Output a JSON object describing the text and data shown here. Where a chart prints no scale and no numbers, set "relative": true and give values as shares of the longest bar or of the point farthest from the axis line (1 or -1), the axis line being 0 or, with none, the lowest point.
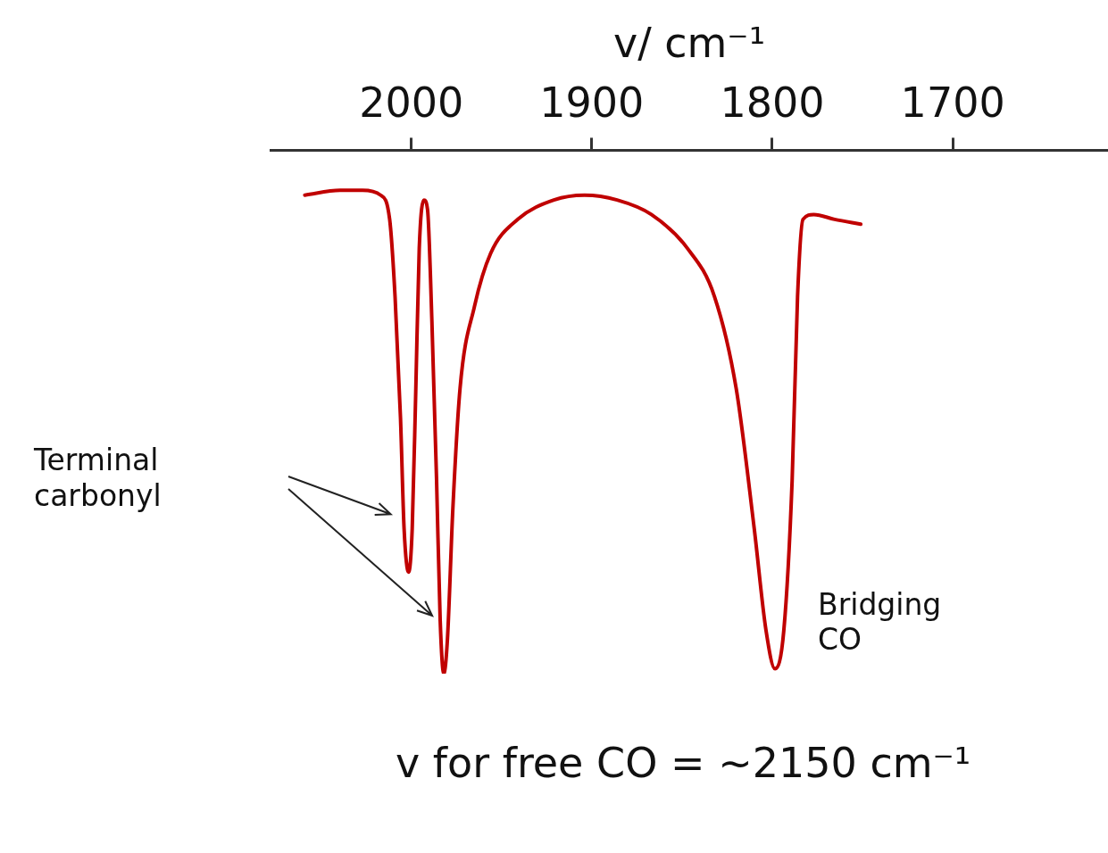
{
  "chart_data": {
    "type": "line",
    "xlabel": "v/ cm⁻¹",
    "relative": true,
    "x": [
      2059,
      2039.5,
      2027,
      2017,
      2012,
      2009,
      2006,
      2004,
      2001.5,
      1999.5,
      1997.5,
      1995.6,
      1993,
      1991,
      1988.6,
      1986,
      1984,
      1982,
      1980,
      1977,
      1973,
      1965,
      1956,
      1941,
      1921,
      1904,
      1886,
      1867,
      1847,
      1832,
      1820,
      1810,
      1803.5,
      1798.5,
      1793.6,
      1789,
      1786,
      1783,
      1777,
      1765.5,
      1751
    ],
    "series": [
      {
        "color": "#c00000",
        "values": [
          0.99,
          1.0,
          1.0,
          0.99,
          0.94,
          0.78,
          0.53,
          0.3,
          0.21,
          0.3,
          0.59,
          0.88,
          0.98,
          0.96,
          0.73,
          0.4,
          0.11,
          0,
          0.07,
          0.34,
          0.59,
          0.76,
          0.87,
          0.94,
          0.98,
          0.99,
          0.98,
          0.95,
          0.88,
          0.78,
          0.59,
          0.3,
          0.09,
          0.01,
          0.09,
          0.4,
          0.78,
          0.94,
          0.95,
          0.94,
          0.93
        ]
      }
    ],
    "xlim": [
      2078,
      1614
    ],
    "xticks": [
      2000,
      1900,
      1800,
      1700
    ],
    "annotations": [
      "Terminal carbonyl",
      {
        "text": "Bridging CO",
        "x": 1798.5,
        "y": 0.01
      },
      "v for free CO = ~2150 cm⁻¹"
    ],
    "grid": false,
    "legend": false,
    "marker": "none",
    "line_style": "solid"
  }
}
